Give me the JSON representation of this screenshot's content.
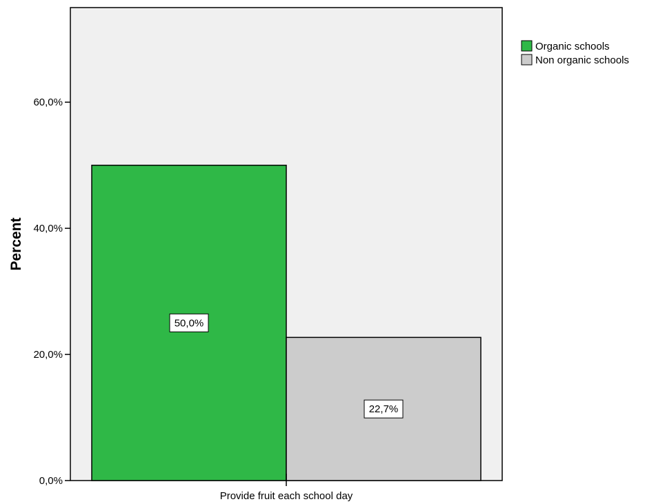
{
  "chart_data": {
    "type": "bar",
    "categories": [
      "Provide fruit each school day"
    ],
    "series": [
      {
        "name": "Organic schools",
        "values": [
          50.0
        ],
        "label": "50,0%",
        "color": "#2fb847"
      },
      {
        "name": "Non organic schools",
        "values": [
          22.7
        ],
        "label": "22,7%",
        "color": "#cccccc"
      }
    ],
    "title": "",
    "xlabel": "",
    "ylabel": "Percent",
    "ylim": [
      0,
      75
    ],
    "yticks": [
      {
        "value": 0,
        "label": "0,0%"
      },
      {
        "value": 20,
        "label": "20,0%"
      },
      {
        "value": 40,
        "label": "40,0%"
      },
      {
        "value": 60,
        "label": "60,0%"
      }
    ],
    "legend_position": "top-right",
    "plot_background": "#f0f0f0",
    "grid": false
  }
}
